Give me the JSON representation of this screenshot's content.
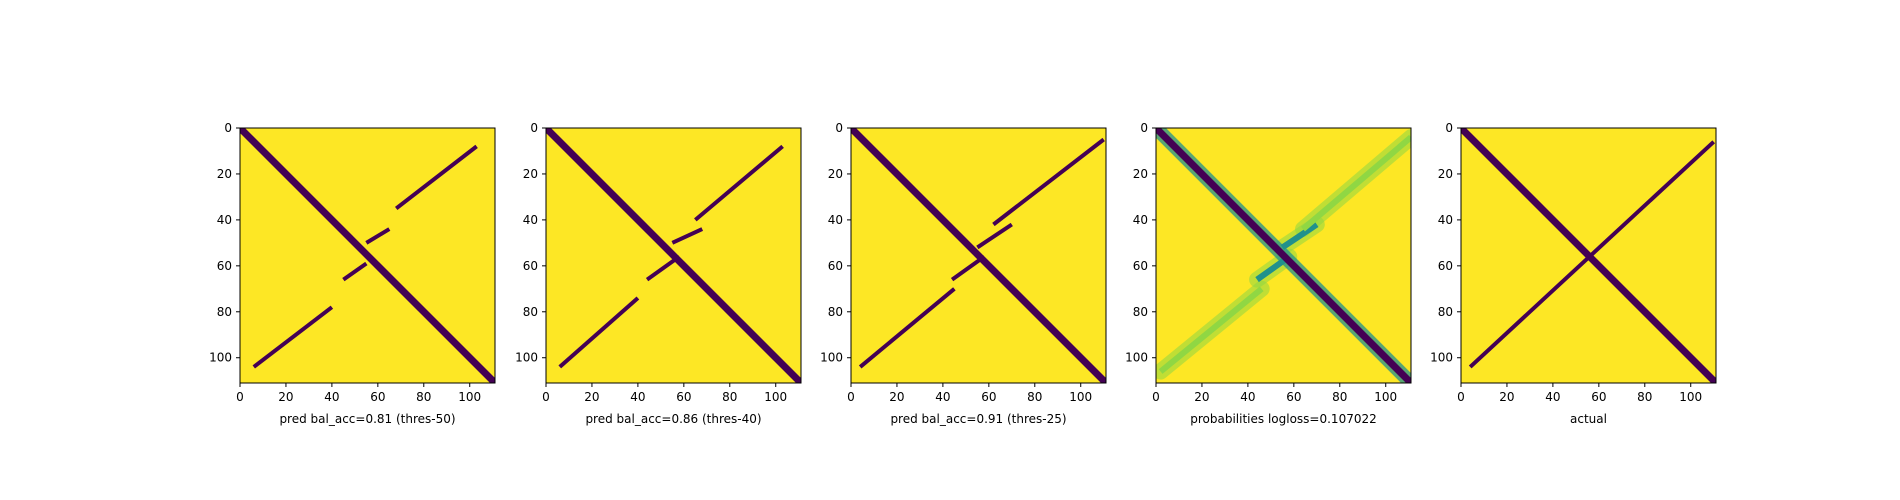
{
  "figure": {
    "background": "#ffffff"
  },
  "chart_data": [
    {
      "type": "heatmap",
      "title": "",
      "xlabel": "pred bal_acc=0.81 (thres-50)",
      "ylabel": "",
      "colormap": "viridis",
      "value_range": [
        0,
        1
      ],
      "colors": {
        "low": "#440154",
        "high": "#fde725"
      },
      "xlim": [
        0,
        111
      ],
      "ylim": [
        111,
        0
      ],
      "x_ticks": [
        0,
        20,
        40,
        60,
        80,
        100
      ],
      "y_ticks": [
        0,
        20,
        40,
        60,
        80,
        100
      ],
      "grid": false,
      "legend": false,
      "structure": {
        "main_diagonal": {
          "x": [
            0,
            111
          ],
          "y": [
            0,
            111
          ],
          "value": 0
        },
        "anti_diagonal_segments": [
          {
            "x": [
              6,
              40
            ],
            "y": [
              104,
              78
            ],
            "value": 0
          },
          {
            "x": [
              45,
              55
            ],
            "y": [
              66,
              59
            ],
            "value": 0
          },
          {
            "x": [
              55,
              65
            ],
            "y": [
              50,
              44
            ],
            "value": 0
          },
          {
            "x": [
              68,
              103
            ],
            "y": [
              35,
              8
            ],
            "value": 0
          }
        ],
        "background_value": 1
      }
    },
    {
      "type": "heatmap",
      "title": "",
      "xlabel": "pred bal_acc=0.86 (thres-40)",
      "ylabel": "",
      "colormap": "viridis",
      "value_range": [
        0,
        1
      ],
      "colors": {
        "low": "#440154",
        "high": "#fde725"
      },
      "xlim": [
        0,
        111
      ],
      "ylim": [
        111,
        0
      ],
      "x_ticks": [
        0,
        20,
        40,
        60,
        80,
        100
      ],
      "y_ticks": [
        0,
        20,
        40,
        60,
        80,
        100
      ],
      "grid": false,
      "legend": false,
      "structure": {
        "main_diagonal": {
          "x": [
            0,
            111
          ],
          "y": [
            0,
            111
          ],
          "value": 0
        },
        "anti_diagonal_segments": [
          {
            "x": [
              6,
              40
            ],
            "y": [
              104,
              74
            ],
            "value": 0
          },
          {
            "x": [
              44,
              58
            ],
            "y": [
              66,
              56
            ],
            "value": 0
          },
          {
            "x": [
              55,
              68
            ],
            "y": [
              50,
              44
            ],
            "value": 0
          },
          {
            "x": [
              65,
              103
            ],
            "y": [
              40,
              8
            ],
            "value": 0
          }
        ],
        "background_value": 1
      }
    },
    {
      "type": "heatmap",
      "title": "",
      "xlabel": "pred bal_acc=0.91 (thres-25)",
      "ylabel": "",
      "colormap": "viridis",
      "value_range": [
        0,
        1
      ],
      "colors": {
        "low": "#440154",
        "high": "#fde725"
      },
      "xlim": [
        0,
        111
      ],
      "ylim": [
        111,
        0
      ],
      "x_ticks": [
        0,
        20,
        40,
        60,
        80,
        100
      ],
      "y_ticks": [
        0,
        20,
        40,
        60,
        80,
        100
      ],
      "grid": false,
      "legend": false,
      "structure": {
        "main_diagonal": {
          "x": [
            0,
            111
          ],
          "y": [
            0,
            111
          ],
          "value": 0
        },
        "anti_diagonal_segments": [
          {
            "x": [
              4,
              45
            ],
            "y": [
              104,
              70
            ],
            "value": 0
          },
          {
            "x": [
              44,
              58
            ],
            "y": [
              66,
              56
            ],
            "value": 0
          },
          {
            "x": [
              55,
              70
            ],
            "y": [
              52,
              42
            ],
            "value": 0
          },
          {
            "x": [
              62,
              110
            ],
            "y": [
              42,
              5
            ],
            "value": 0
          }
        ],
        "background_value": 1
      }
    },
    {
      "type": "heatmap",
      "title": "",
      "xlabel": "probabilities logloss=0.107022",
      "ylabel": "",
      "colormap": "viridis",
      "value_range": [
        0,
        1
      ],
      "colors": {
        "low": "#440154",
        "mid": "#21918c",
        "light": "#90d743",
        "high": "#fde725"
      },
      "xlim": [
        0,
        111
      ],
      "ylim": [
        111,
        0
      ],
      "x_ticks": [
        0,
        20,
        40,
        60,
        80,
        100
      ],
      "y_ticks": [
        0,
        20,
        40,
        60,
        80,
        100
      ],
      "grid": false,
      "legend": false,
      "structure": {
        "main_diagonal": {
          "x": [
            0,
            111
          ],
          "y": [
            0,
            111
          ],
          "value": 0
        },
        "anti_diagonal_segments": [
          {
            "x": [
              2,
              46
            ],
            "y": [
              106,
              70
            ],
            "value": 0.35
          },
          {
            "x": [
              44,
              58
            ],
            "y": [
              66,
              56
            ],
            "value": 0.2
          },
          {
            "x": [
              55,
              70
            ],
            "y": [
              52,
              42
            ],
            "value": 0.2
          },
          {
            "x": [
              64,
              111
            ],
            "y": [
              44,
              4
            ],
            "value": 0.35
          }
        ],
        "background_value": 1
      }
    },
    {
      "type": "heatmap",
      "title": "",
      "xlabel": "actual",
      "ylabel": "",
      "colormap": "viridis",
      "value_range": [
        0,
        1
      ],
      "colors": {
        "low": "#440154",
        "high": "#fde725"
      },
      "xlim": [
        0,
        111
      ],
      "ylim": [
        111,
        0
      ],
      "x_ticks": [
        0,
        20,
        40,
        60,
        80,
        100
      ],
      "y_ticks": [
        0,
        20,
        40,
        60,
        80,
        100
      ],
      "grid": false,
      "legend": false,
      "structure": {
        "main_diagonal": {
          "x": [
            0,
            111
          ],
          "y": [
            0,
            111
          ],
          "value": 0
        },
        "anti_diagonal_segments": [
          {
            "x": [
              4,
              110
            ],
            "y": [
              104,
              6
            ],
            "value": 0
          }
        ],
        "background_value": 1
      }
    }
  ]
}
